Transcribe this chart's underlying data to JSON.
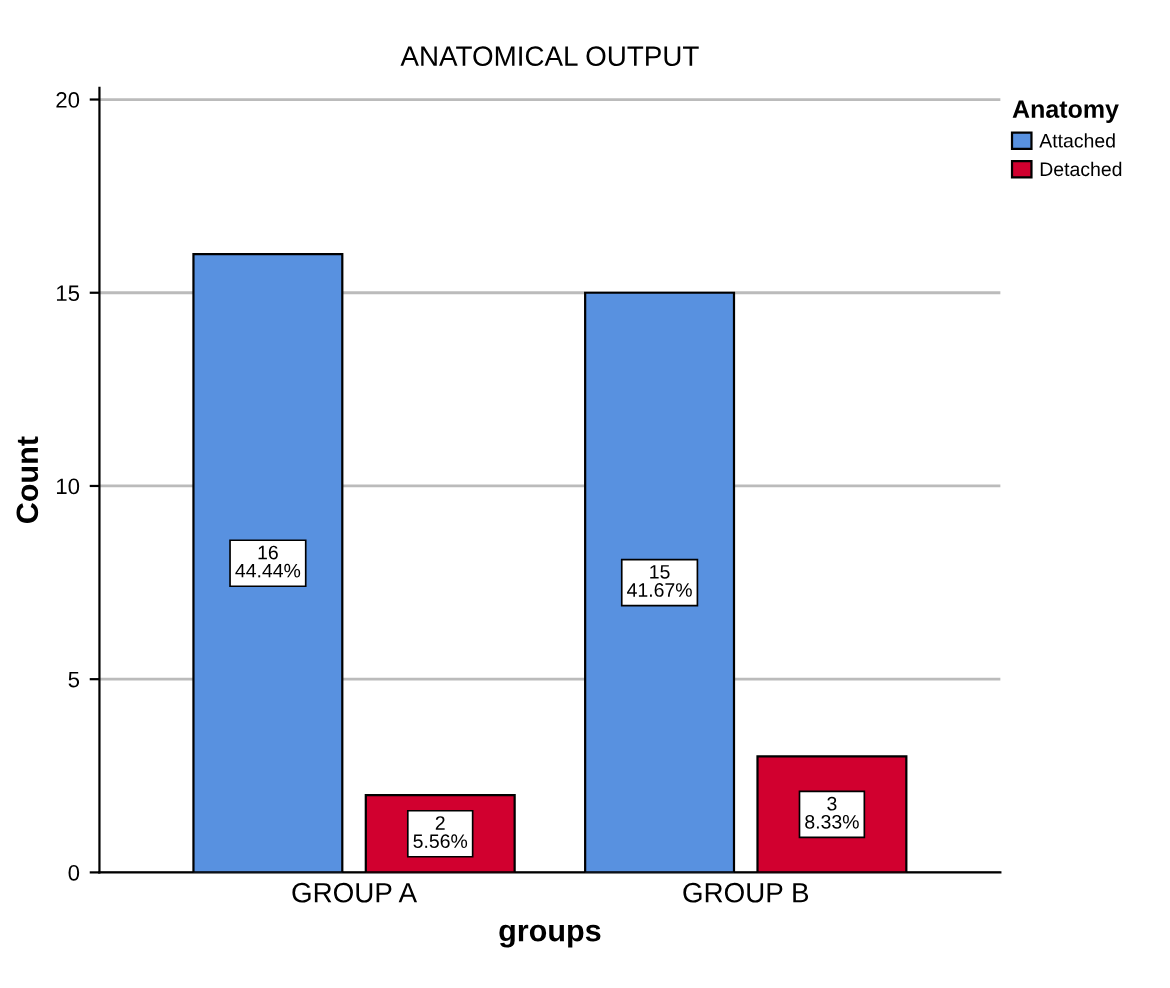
{
  "chart_data": {
    "type": "bar",
    "title": "ANATOMICAL OUTPUT",
    "xlabel": "groups",
    "ylabel": "Count",
    "legend_title": "Anatomy",
    "categories": [
      "GROUP A",
      "GROUP B"
    ],
    "series": [
      {
        "name": "Attached",
        "color": "#5891e0",
        "values": [
          16,
          15
        ],
        "value_labels": [
          "16\n44.44%",
          "15\n41.67%"
        ]
      },
      {
        "name": "Detached",
        "color": "#d1002f",
        "values": [
          2,
          3
        ],
        "value_labels": [
          "2\n5.56%",
          "3\n8.33%"
        ]
      }
    ],
    "ylim": [
      0,
      20.3
    ],
    "yticks": [
      0,
      5,
      10,
      15,
      20
    ],
    "grid": "y",
    "legend": "top right"
  }
}
